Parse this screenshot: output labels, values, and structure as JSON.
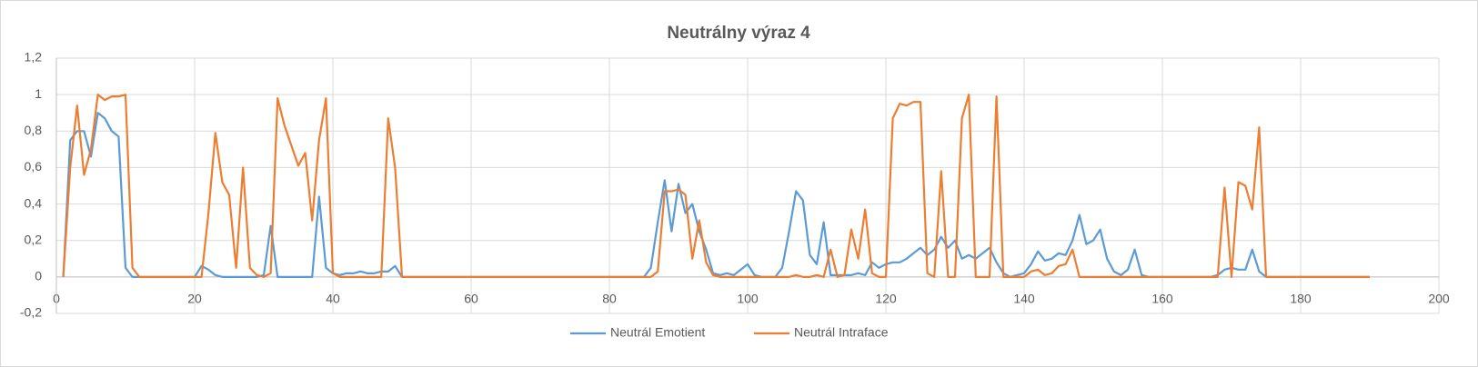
{
  "chart_data": {
    "type": "line",
    "title": "Neutrálny výraz 4",
    "x": [
      1,
      2,
      3,
      4,
      5,
      6,
      7,
      8,
      9,
      10,
      11,
      12,
      13,
      14,
      15,
      16,
      17,
      18,
      19,
      20,
      21,
      22,
      23,
      24,
      25,
      26,
      27,
      28,
      29,
      30,
      31,
      32,
      33,
      34,
      35,
      36,
      37,
      38,
      39,
      40,
      41,
      42,
      43,
      44,
      45,
      46,
      47,
      48,
      49,
      50,
      51,
      52,
      53,
      54,
      55,
      56,
      57,
      58,
      59,
      60,
      61,
      62,
      63,
      64,
      65,
      66,
      67,
      68,
      69,
      70,
      71,
      72,
      73,
      74,
      75,
      76,
      77,
      78,
      79,
      80,
      81,
      82,
      83,
      84,
      85,
      86,
      87,
      88,
      89,
      90,
      91,
      92,
      93,
      94,
      95,
      96,
      97,
      98,
      99,
      100,
      101,
      102,
      103,
      104,
      105,
      106,
      107,
      108,
      109,
      110,
      111,
      112,
      113,
      114,
      115,
      116,
      117,
      118,
      119,
      120,
      121,
      122,
      123,
      124,
      125,
      126,
      127,
      128,
      129,
      130,
      131,
      132,
      133,
      134,
      135,
      136,
      137,
      138,
      139,
      140,
      141,
      142,
      143,
      144,
      145,
      146,
      147,
      148,
      149,
      150,
      151,
      152,
      153,
      154,
      155,
      156,
      157,
      158,
      159,
      160,
      161,
      162,
      163,
      164,
      165,
      166,
      167,
      168,
      169,
      170,
      171,
      172,
      173,
      174,
      175,
      176,
      177,
      178,
      179,
      180,
      181,
      182,
      183,
      184,
      185,
      186,
      187,
      188,
      189,
      190
    ],
    "series": [
      {
        "name": "Neutrál Emotient",
        "color": "#5b9bd5",
        "values": [
          0,
          0.75,
          0.8,
          0.8,
          0.66,
          0.9,
          0.87,
          0.8,
          0.77,
          0.05,
          0,
          0,
          0,
          0,
          0,
          0,
          0,
          0,
          0,
          0,
          0.06,
          0.04,
          0.01,
          0,
          0,
          0,
          0,
          0,
          0,
          0.01,
          0.28,
          0,
          0,
          0,
          0,
          0,
          0,
          0.44,
          0.05,
          0.02,
          0.01,
          0.02,
          0.02,
          0.03,
          0.02,
          0.02,
          0.03,
          0.03,
          0.06,
          0,
          0,
          0,
          0,
          0,
          0,
          0,
          0,
          0,
          0,
          0,
          0,
          0,
          0,
          0,
          0,
          0,
          0,
          0,
          0,
          0,
          0,
          0,
          0,
          0,
          0,
          0,
          0,
          0,
          0,
          0,
          0,
          0,
          0,
          0,
          0,
          0.05,
          0.3,
          0.53,
          0.25,
          0.51,
          0.35,
          0.4,
          0.25,
          0.15,
          0.02,
          0.01,
          0.02,
          0.01,
          0.04,
          0.07,
          0.01,
          0,
          0,
          0,
          0.05,
          0.25,
          0.47,
          0.42,
          0.12,
          0.07,
          0.3,
          0.01,
          0.01,
          0.01,
          0.01,
          0.02,
          0.01,
          0.08,
          0.05,
          0.07,
          0.08,
          0.08,
          0.1,
          0.13,
          0.16,
          0.12,
          0.15,
          0.22,
          0.16,
          0.2,
          0.1,
          0.12,
          0.1,
          0.13,
          0.16,
          0.08,
          0.02,
          0,
          0.01,
          0.02,
          0.07,
          0.14,
          0.09,
          0.1,
          0.13,
          0.12,
          0.2,
          0.34,
          0.18,
          0.2,
          0.26,
          0.1,
          0.03,
          0.01,
          0.04,
          0.15,
          0.01,
          0,
          0,
          0,
          0,
          0,
          0,
          0,
          0,
          0,
          0,
          0.01,
          0.04,
          0.05,
          0.04,
          0.04,
          0.15,
          0.03,
          0,
          0,
          0,
          0,
          0,
          0,
          0,
          0,
          0,
          0,
          0,
          0,
          0,
          0,
          0,
          0
        ]
      },
      {
        "name": "Neutrál Intraface",
        "color": "#ed7d31",
        "values": [
          0,
          0.6,
          0.94,
          0.56,
          0.7,
          1,
          0.97,
          0.99,
          0.99,
          1,
          0.05,
          0,
          0,
          0,
          0,
          0,
          0,
          0,
          0,
          0,
          0,
          0.35,
          0.79,
          0.52,
          0.45,
          0.05,
          0.6,
          0.05,
          0.01,
          0,
          0.02,
          0.98,
          0.83,
          0.72,
          0.61,
          0.68,
          0.31,
          0.75,
          0.98,
          0.02,
          0,
          0,
          0,
          0,
          0,
          0,
          0,
          0.87,
          0.6,
          0,
          0,
          0,
          0,
          0,
          0,
          0,
          0,
          0,
          0,
          0,
          0,
          0,
          0,
          0,
          0,
          0,
          0,
          0,
          0,
          0,
          0,
          0,
          0,
          0,
          0,
          0,
          0,
          0,
          0,
          0,
          0,
          0,
          0,
          0,
          0,
          0,
          0.03,
          0.47,
          0.47,
          0.48,
          0.45,
          0.1,
          0.31,
          0.08,
          0.01,
          0,
          0,
          0,
          0,
          0,
          0,
          0,
          0,
          0,
          0,
          0,
          0.01,
          0,
          0,
          0.01,
          0,
          0.15,
          0,
          0.01,
          0.26,
          0.1,
          0.37,
          0.02,
          0,
          0,
          0.87,
          0.95,
          0.94,
          0.96,
          0.96,
          0.02,
          0,
          0.58,
          0,
          0,
          0.87,
          1,
          0,
          0,
          0,
          0.99,
          0,
          0,
          0,
          0,
          0.03,
          0.04,
          0.01,
          0.02,
          0.06,
          0.07,
          0.15,
          0,
          0,
          0,
          0,
          0,
          0,
          0,
          0,
          0,
          0,
          0,
          0,
          0,
          0,
          0,
          0,
          0,
          0,
          0,
          0,
          0,
          0.49,
          0,
          0.52,
          0.5,
          0.37,
          0.82,
          0,
          0,
          0,
          0,
          0,
          0,
          0,
          0,
          0,
          0,
          0,
          0,
          0,
          0,
          0,
          0
        ]
      }
    ],
    "xlim": [
      0,
      200
    ],
    "xticks": [
      0,
      20,
      40,
      60,
      80,
      100,
      120,
      140,
      160,
      180,
      200
    ],
    "ylim": [
      -0.2,
      1.2
    ],
    "yticks": [
      {
        "value": -0.2,
        "label": "-0,2"
      },
      0,
      {
        "value": 0.2,
        "label": "0,2"
      },
      {
        "value": 0.4,
        "label": "0,4"
      },
      {
        "value": 0.6,
        "label": "0,6"
      },
      {
        "value": 0.8,
        "label": "0,8"
      },
      1,
      {
        "value": 1.2,
        "label": "1,2"
      }
    ],
    "grid": true,
    "legend": "bottom"
  }
}
